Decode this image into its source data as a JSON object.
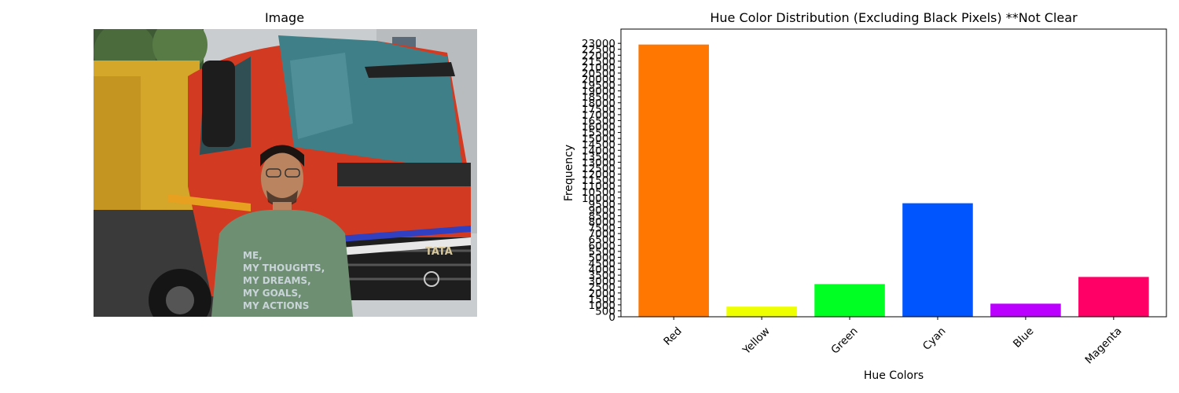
{
  "left_panel": {
    "title": "Image",
    "photo": {
      "subject": "man-in-front-of-red-truck",
      "shirt_text": [
        "ME,",
        "MY THOUGHTS,",
        "MY DREAMS,",
        "MY GOALS,",
        "MY ACTIONS"
      ],
      "badge_text": "TATA"
    }
  },
  "chart_data": {
    "type": "bar",
    "title": "Hue Color Distribution (Excluding Black Pixels) **Not Clear",
    "xlabel": "Hue Colors",
    "ylabel": "Frequency",
    "categories": [
      "Red",
      "Yellow",
      "Green",
      "Cyan",
      "Blue",
      "Magenta"
    ],
    "values": [
      22900,
      850,
      2750,
      9550,
      1100,
      3350
    ],
    "colors": [
      "#ff7700",
      "#eeff00",
      "#00ff22",
      "#0055ff",
      "#bb00ff",
      "#ff0066"
    ],
    "ylim": [
      0,
      24200
    ],
    "yticks": [
      0,
      500,
      1000,
      1500,
      2000,
      2500,
      3000,
      3500,
      4000,
      4500,
      5000,
      5500,
      6000,
      6500,
      7000,
      7500,
      8000,
      8500,
      9000,
      9500,
      10000,
      10500,
      11000,
      11500,
      12000,
      12500,
      13000,
      13500,
      14000,
      14500,
      15000,
      15500,
      16000,
      16500,
      17000,
      17500,
      18000,
      18500,
      19000,
      19500,
      20000,
      20500,
      21000,
      21500,
      22000,
      22500,
      23000
    ],
    "grid": false,
    "legend": "none"
  }
}
